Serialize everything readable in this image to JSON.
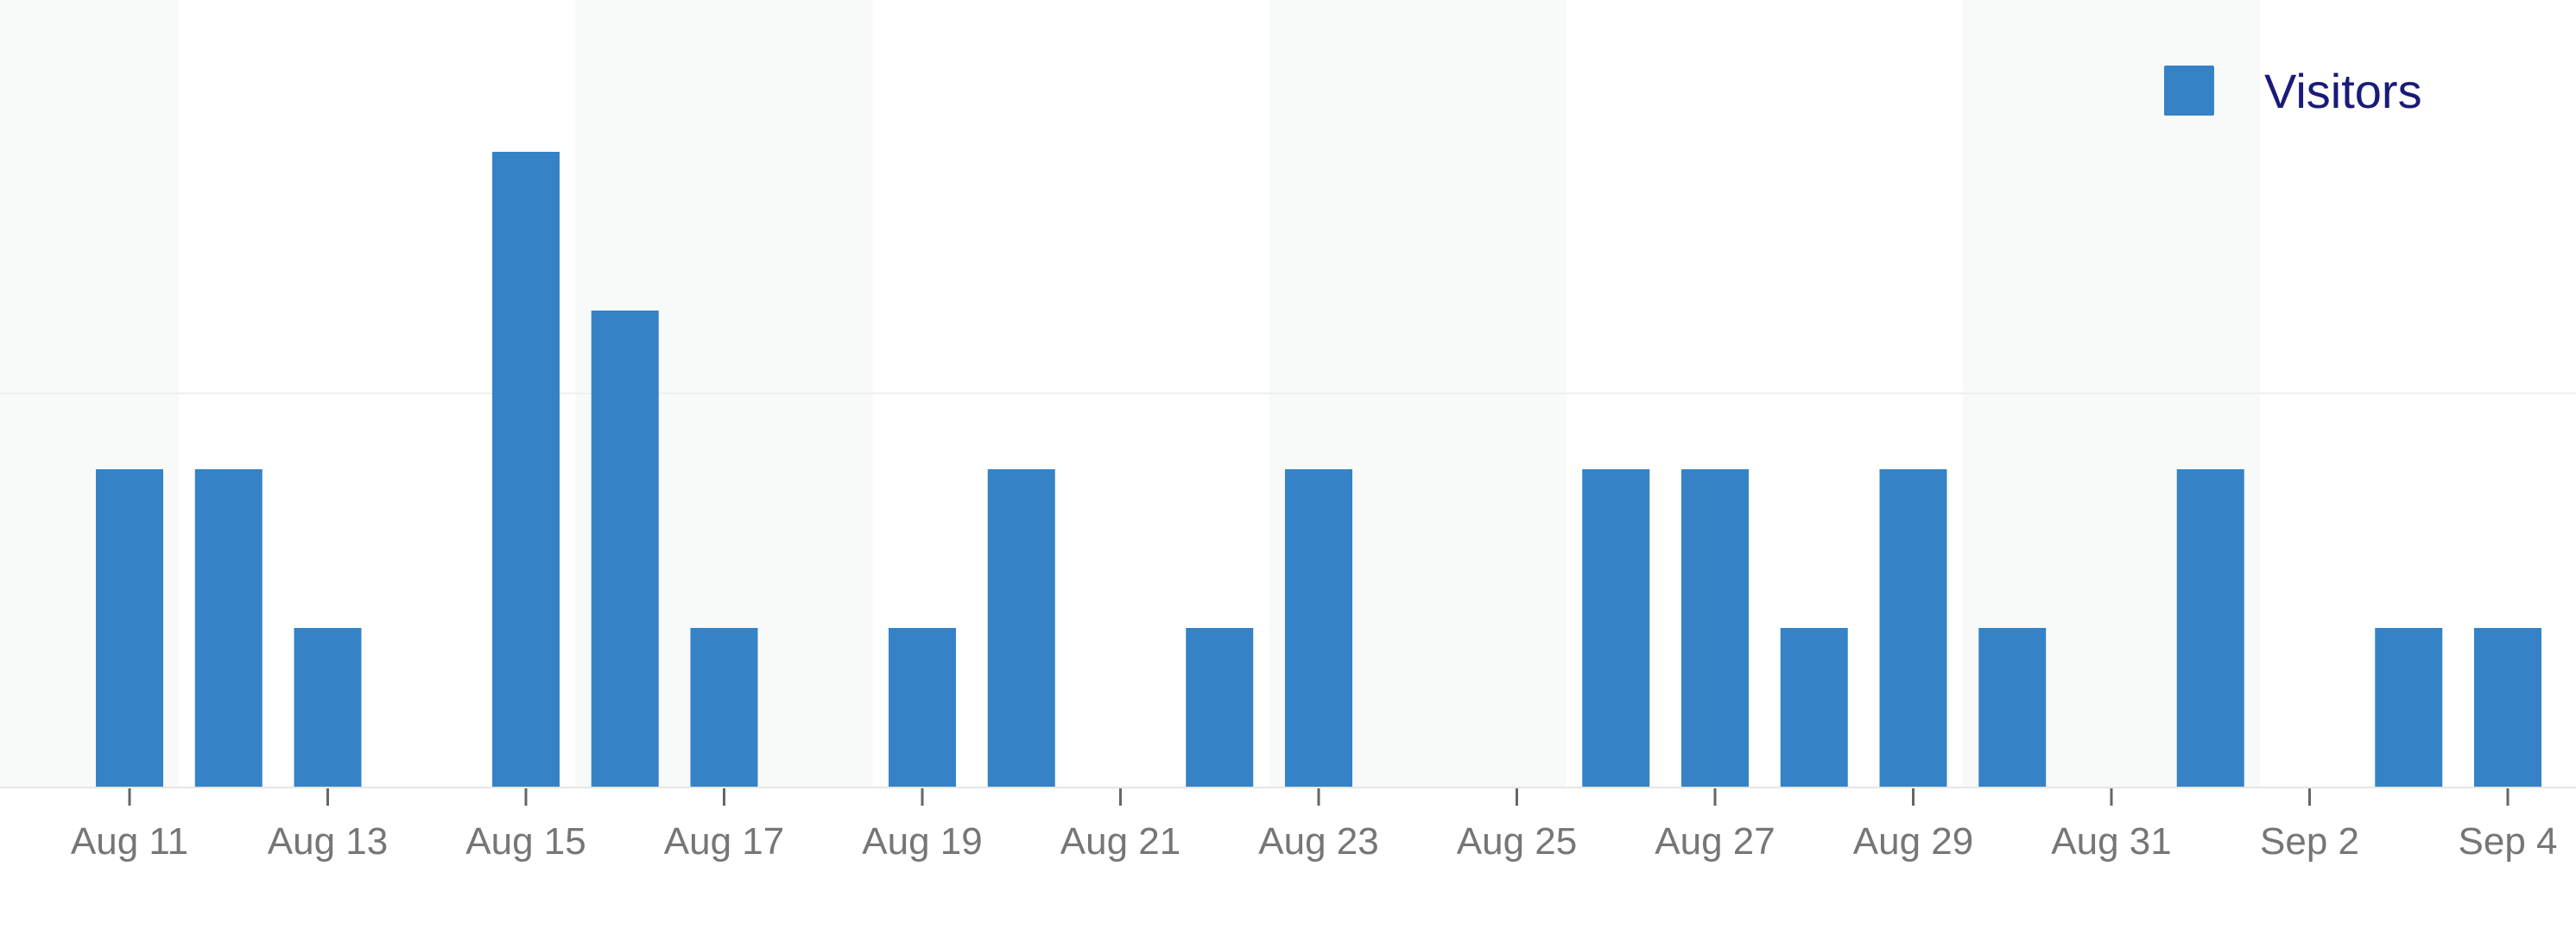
{
  "chart_data": {
    "type": "bar",
    "legend_position": "top-right",
    "grid": true,
    "series": [
      {
        "name": "Visitors",
        "color": "#3583c6",
        "values": [
          2,
          2,
          1,
          0,
          4,
          3,
          1,
          0,
          1,
          2,
          0,
          1,
          2,
          0,
          0,
          2,
          2,
          1,
          2,
          1,
          0,
          2,
          0,
          1,
          1
        ]
      }
    ],
    "categories": [
      "Aug 11",
      "Aug 12",
      "Aug 13",
      "Aug 14",
      "Aug 15",
      "Aug 16",
      "Aug 17",
      "Aug 18",
      "Aug 19",
      "Aug 20",
      "Aug 21",
      "Aug 22",
      "Aug 23",
      "Aug 24",
      "Aug 25",
      "Aug 26",
      "Aug 27",
      "Aug 28",
      "Aug 29",
      "Aug 30",
      "Aug 31",
      "Sep 1",
      "Sep 2",
      "Sep 3",
      "Sep 4"
    ],
    "tick_labels": [
      "Aug 11",
      "Aug 13",
      "Aug 15",
      "Aug 17",
      "Aug 19",
      "Aug 21",
      "Aug 23",
      "Aug 25",
      "Aug 27",
      "Aug 29",
      "Aug 31",
      "Sep 2",
      "Sep 4"
    ],
    "weekend_shading": [
      [
        "Aug 10",
        "Aug 11"
      ],
      [
        "Aug 16",
        "Aug 18"
      ],
      [
        "Aug 23",
        "Aug 25"
      ],
      [
        "Aug 30",
        "Sep 1"
      ]
    ],
    "ylim": [
      0,
      5
    ],
    "axis_color": "#e6e6e6",
    "grid_color": "#efefef",
    "band_color": "#f8f9f9"
  }
}
